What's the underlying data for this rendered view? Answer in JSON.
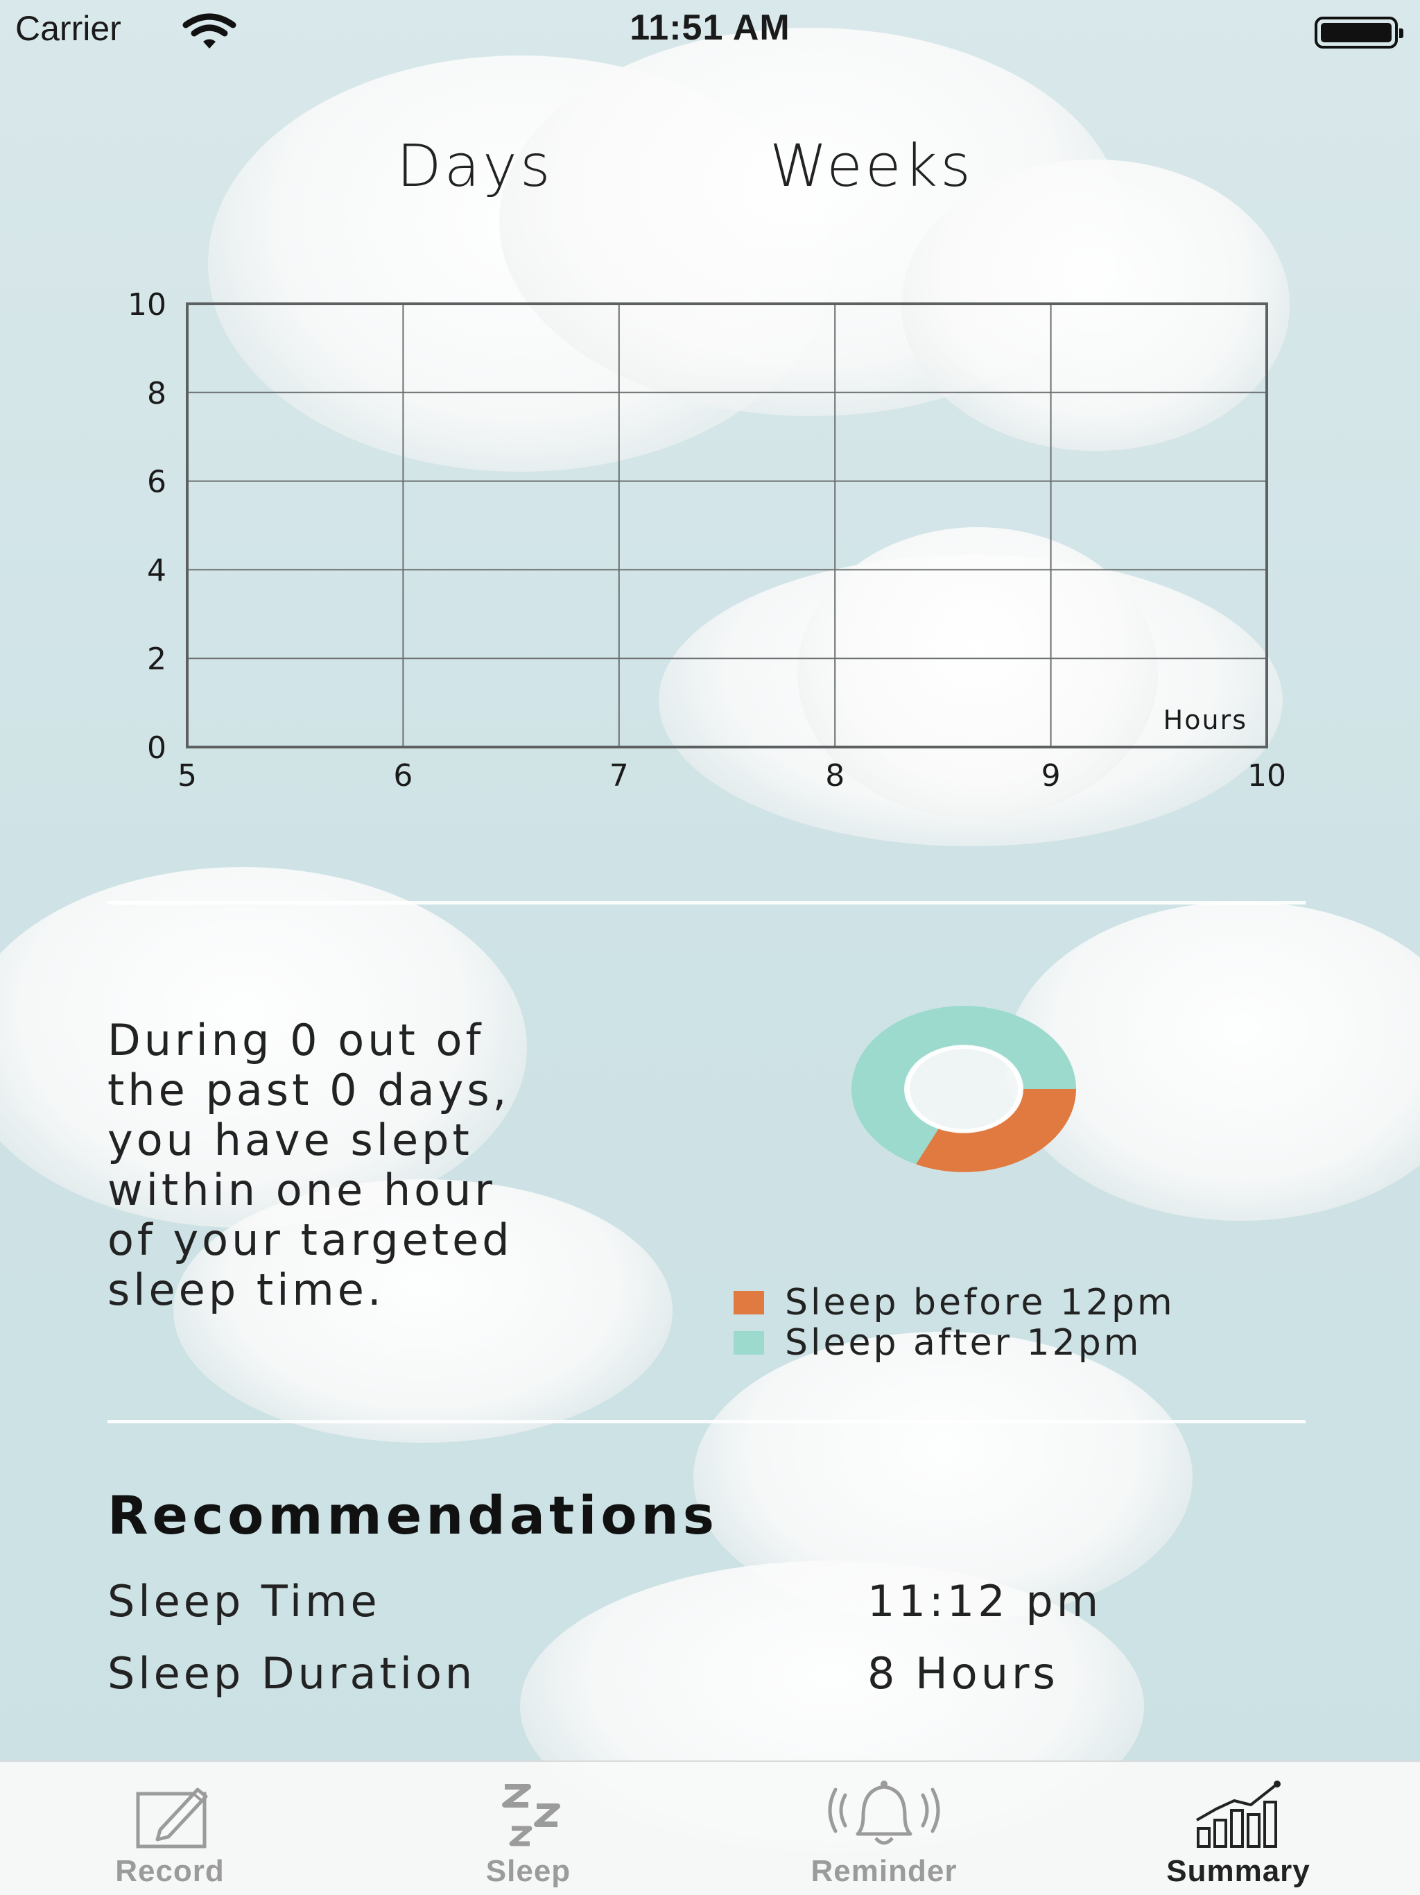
{
  "status_bar": {
    "carrier": "Carrier",
    "time": "11:51 AM"
  },
  "segments": {
    "days": "Days",
    "weeks": "Weeks"
  },
  "chart_data": {
    "type": "scatter",
    "x_ticks": [
      "5",
      "6",
      "7",
      "8",
      "9",
      "10"
    ],
    "y_ticks": [
      "0",
      "2",
      "4",
      "6",
      "8",
      "10"
    ],
    "xlim": [
      5,
      10
    ],
    "ylim": [
      0,
      10
    ],
    "xlabel": "",
    "ylabel": "",
    "annotation": "Hours",
    "grid": true,
    "points": []
  },
  "donut_chart": {
    "type": "pie",
    "slices": [
      {
        "label": "Sleep before 12pm",
        "value": 0.32,
        "color": "#e07a40"
      },
      {
        "label": "Sleep after 12pm",
        "value": 0.68,
        "color": "#9cdacd"
      }
    ]
  },
  "summary": {
    "lines": [
      "During 0 out of",
      "the past 0 days,",
      "you have slept",
      "within one hour",
      "of your targeted",
      "sleep time."
    ]
  },
  "legend": {
    "before": "Sleep before 12pm",
    "after": "Sleep after 12pm",
    "before_color": "#e07a40",
    "after_color": "#9cdacd"
  },
  "recommendations": {
    "title": "Recommendations",
    "sleep_time_label": "Sleep Time",
    "sleep_time_value": "11:12 pm",
    "sleep_duration_label": "Sleep Duration",
    "sleep_duration_value": "8 Hours"
  },
  "tabbar": {
    "record": "Record",
    "sleep": "Sleep",
    "reminder": "Reminder",
    "summary": "Summary",
    "active": "summary"
  }
}
